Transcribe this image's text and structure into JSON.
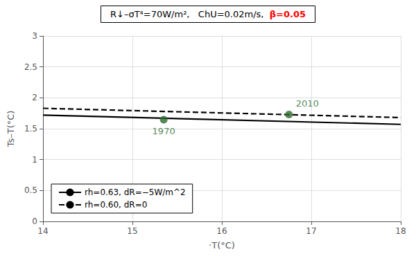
{
  "chart_data": {
    "type": "line",
    "title": [
      {
        "text": "R↓–σT⁴=70W/m²,   ChU=0.02m/s,  ",
        "color": "#000000"
      },
      {
        "text": "β=0.05",
        "color": "red"
      }
    ],
    "x_label": "·T(°C)",
    "y_label": "Ts–T(°C)",
    "xlim": [
      14,
      18
    ],
    "ylim": [
      0,
      3
    ],
    "xticks": [
      14,
      15,
      16,
      17,
      18
    ],
    "yticks": [
      0,
      0.5,
      1,
      1.5,
      2,
      2.5,
      3
    ],
    "grid": true,
    "legend": "lower left",
    "series": [
      {
        "name": "rh=0.63, dR=−5W/m^2",
        "type": "line",
        "color": "#000000",
        "line_style": "solid",
        "x": [
          14,
          18
        ],
        "values": [
          1.72,
          1.57
        ]
      },
      {
        "name": "rh=0.60, dR=0",
        "type": "line",
        "color": "#000000",
        "line_style": "dashed",
        "x": [
          14,
          18
        ],
        "values": [
          1.83,
          1.68
        ]
      },
      {
        "type": "scatter",
        "color": "#2d6a2d",
        "marker": "circle",
        "x": [
          15.35,
          16.75
        ],
        "values": [
          1.645,
          1.73
        ]
      }
    ],
    "annotations": [
      {
        "text": "1970",
        "x": 15.35,
        "y": 1.645,
        "color": "#2d6a2d"
      },
      {
        "text": "2010",
        "x": 16.75,
        "y": 1.73,
        "color": "#2d6a2d"
      }
    ]
  }
}
